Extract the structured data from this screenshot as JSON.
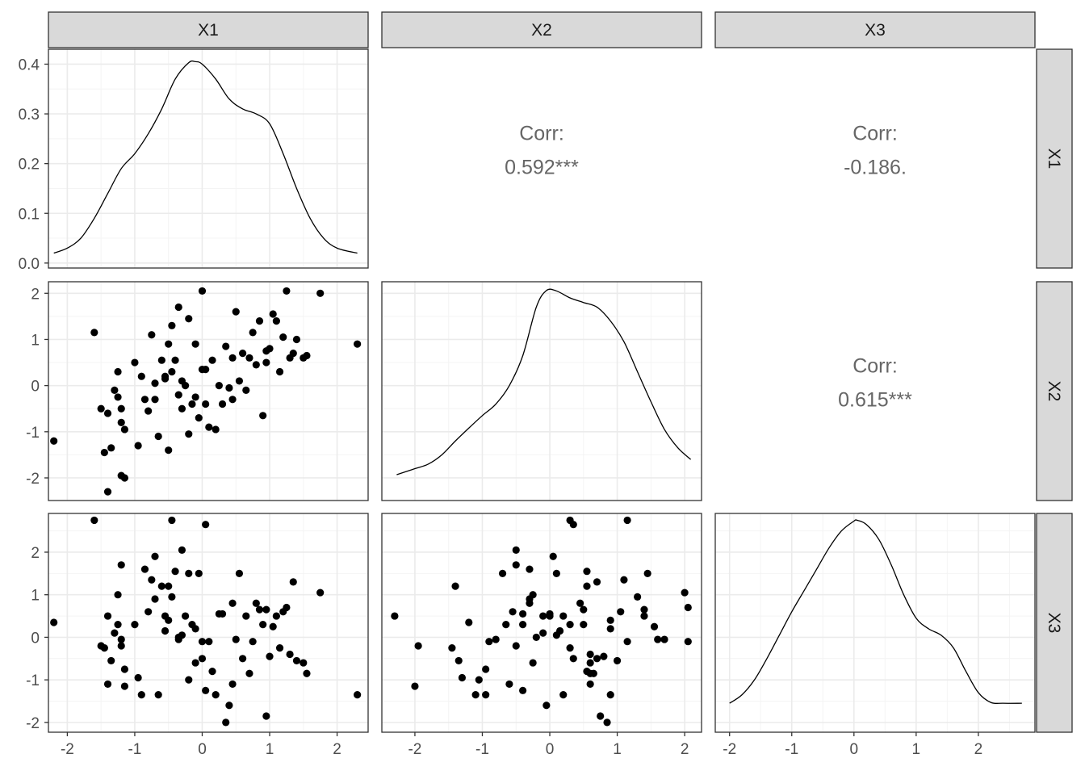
{
  "variables": [
    "X1",
    "X2",
    "X3"
  ],
  "colors": {
    "strip_fill": "#d9d9d9",
    "border": "#333333",
    "grid_major": "#ebebeb",
    "grid_minor": "#f4f4f4",
    "point": "#000000",
    "corr_text": "#666666",
    "tick_text": "#4d4d4d"
  },
  "chart_data": {
    "type": "scatter",
    "layout": "pairs-matrix",
    "columns": [
      "X1",
      "X2",
      "X3"
    ],
    "rows": [
      "X1",
      "X2",
      "X3"
    ],
    "grid": true,
    "correlations": [
      {
        "row": "X1",
        "col": "X2",
        "label": "Corr:",
        "value": "0.592***"
      },
      {
        "row": "X1",
        "col": "X3",
        "label": "Corr:",
        "value": "-0.186."
      },
      {
        "row": "X2",
        "col": "X3",
        "label": "Corr:",
        "value": "0.615***"
      }
    ],
    "x_axis": {
      "X1": {
        "range": [
          -2.28,
          2.46
        ],
        "ticks": [
          -2,
          -1,
          0,
          1,
          2
        ]
      },
      "X2": {
        "range": [
          -2.49,
          2.25
        ],
        "ticks": [
          -2,
          -1,
          0,
          1,
          2
        ]
      },
      "X3": {
        "range": [
          -2.23,
          2.91
        ],
        "ticks": [
          -2,
          -1,
          0,
          1,
          2
        ]
      }
    },
    "y_axis": {
      "X1": {
        "range": [
          -0.01,
          0.43
        ],
        "ticks": [
          0.0,
          0.1,
          0.2,
          0.3,
          0.4
        ],
        "tick_labels": [
          "0.0",
          "0.1",
          "0.2",
          "0.3",
          "0.4"
        ]
      },
      "X2": {
        "range": [
          -2.49,
          2.25
        ],
        "ticks": [
          -2,
          -1,
          0,
          1,
          2
        ]
      },
      "X3": {
        "range": [
          -2.23,
          2.91
        ],
        "ticks": [
          -2,
          -1,
          0,
          1,
          2
        ]
      }
    },
    "densities": {
      "X1": {
        "x": [
          -2.2,
          -2.0,
          -1.8,
          -1.6,
          -1.4,
          -1.2,
          -1.0,
          -0.8,
          -0.6,
          -0.4,
          -0.2,
          -0.1,
          0.0,
          0.2,
          0.4,
          0.6,
          0.8,
          1.0,
          1.2,
          1.4,
          1.6,
          1.8,
          2.0,
          2.3
        ],
        "y": [
          0.02,
          0.03,
          0.05,
          0.09,
          0.14,
          0.19,
          0.22,
          0.26,
          0.31,
          0.37,
          0.403,
          0.405,
          0.4,
          0.37,
          0.33,
          0.31,
          0.3,
          0.28,
          0.22,
          0.15,
          0.09,
          0.05,
          0.03,
          0.02
        ]
      },
      "X2": {
        "x": [
          -2.27,
          -2.0,
          -1.8,
          -1.6,
          -1.4,
          -1.2,
          -1.0,
          -0.8,
          -0.6,
          -0.4,
          -0.2,
          -0.05,
          0.1,
          0.3,
          0.5,
          0.7,
          0.9,
          1.1,
          1.3,
          1.5,
          1.7,
          1.9,
          2.09
        ],
        "y": [
          -1.93,
          -1.8,
          -1.7,
          -1.5,
          -1.2,
          -0.92,
          -0.65,
          -0.4,
          0.0,
          0.65,
          1.7,
          2.06,
          2.05,
          1.9,
          1.8,
          1.7,
          1.4,
          0.95,
          0.3,
          -0.35,
          -0.95,
          -1.35,
          -1.6
        ]
      },
      "X3": {
        "x": [
          -2.0,
          -1.8,
          -1.6,
          -1.4,
          -1.2,
          -1.0,
          -0.8,
          -0.6,
          -0.4,
          -0.2,
          0.0,
          0.05,
          0.2,
          0.4,
          0.6,
          0.8,
          1.0,
          1.2,
          1.4,
          1.6,
          1.8,
          2.0,
          2.2,
          2.4,
          2.7
        ],
        "y": [
          -1.55,
          -1.35,
          -1.0,
          -0.5,
          0.05,
          0.6,
          1.1,
          1.6,
          2.1,
          2.5,
          2.73,
          2.75,
          2.65,
          2.3,
          1.7,
          1.0,
          0.45,
          0.2,
          0.05,
          -0.25,
          -0.8,
          -1.3,
          -1.53,
          -1.55,
          -1.55
        ]
      }
    },
    "observations": {
      "X1": [
        -2.2,
        -1.6,
        -1.5,
        -1.45,
        -1.4,
        -1.4,
        -1.35,
        -1.25,
        -1.25,
        -1.2,
        -1.2,
        -1.2,
        -1.15,
        -1.15,
        -0.95,
        -0.9,
        -0.85,
        -0.8,
        -0.75,
        -0.7,
        -0.65,
        -0.6,
        -0.55,
        -0.5,
        -0.5,
        -0.45,
        -0.45,
        -0.4,
        -0.35,
        -0.35,
        -0.3,
        -0.25,
        -0.2,
        -0.2,
        -0.15,
        -0.1,
        -0.05,
        0.0,
        0.05,
        0.05,
        0.1,
        0.15,
        0.2,
        0.25,
        0.3,
        0.35,
        0.4,
        0.45,
        0.5,
        0.55,
        0.6,
        0.7,
        0.75,
        0.8,
        0.85,
        0.9,
        0.95,
        1.0,
        1.05,
        1.1,
        1.2,
        1.25,
        1.3,
        1.35,
        1.4,
        1.5,
        1.55,
        1.75,
        2.3,
        -1.0,
        -0.3,
        0.0,
        -0.7,
        -1.3,
        0.45,
        0.95,
        0.65,
        1.15,
        -0.55,
        -0.1
      ],
      "X2": [
        -1.2,
        1.15,
        -0.5,
        -1.45,
        -2.3,
        -0.6,
        -1.35,
        -0.25,
        0.3,
        -1.95,
        -0.8,
        -0.5,
        -2.0,
        -0.95,
        -1.3,
        0.2,
        -0.3,
        -0.55,
        1.1,
        0.05,
        -1.1,
        0.55,
        0.2,
        0.9,
        -1.4,
        0.3,
        1.3,
        0.55,
        -0.2,
        1.7,
        -0.5,
        0.0,
        1.45,
        -1.05,
        -0.4,
        0.9,
        -0.7,
        2.05,
        0.35,
        -0.4,
        -0.9,
        0.55,
        -0.95,
        0.0,
        -0.4,
        0.85,
        -0.05,
        0.6,
        1.6,
        0.1,
        0.7,
        0.6,
        1.15,
        0.45,
        1.4,
        -0.65,
        0.75,
        0.8,
        1.55,
        1.4,
        1.05,
        2.05,
        0.6,
        0.7,
        1.0,
        0.6,
        0.65,
        2.0,
        0.9,
        0.5,
        0.1,
        0.35,
        -0.3,
        -0.1,
        -0.3,
        0.5,
        -0.1,
        0.3,
        0.15,
        -0.25
      ],
      "X3": [
        0.35,
        2.75,
        -0.2,
        -0.25,
        0.5,
        -1.1,
        -0.55,
        1.0,
        0.3,
        -0.2,
        -0.05,
        1.7,
        -1.15,
        -0.75,
        -0.95,
        -1.35,
        1.6,
        0.6,
        1.35,
        1.9,
        -1.35,
        1.2,
        0.5,
        0.4,
        1.2,
        2.75,
        0.95,
        1.55,
        0.0,
        -0.05,
        2.05,
        0.5,
        1.5,
        -1.0,
        0.3,
        0.2,
        1.5,
        -0.1,
        2.65,
        -1.25,
        -0.1,
        -0.8,
        -1.35,
        0.55,
        0.55,
        -2.0,
        -1.6,
        -1.1,
        -0.05,
        1.5,
        -0.5,
        -0.85,
        -0.1,
        0.8,
        0.65,
        0.3,
        -1.85,
        -0.45,
        0.25,
        0.5,
        0.6,
        0.7,
        -0.4,
        1.3,
        -0.55,
        -0.6,
        -0.85,
        1.05,
        -1.35,
        0.3,
        0.05,
        -0.5,
        0.9,
        0.1,
        0.8,
        0.65,
        0.5,
        -0.25,
        0.15,
        -0.6
      ]
    }
  }
}
